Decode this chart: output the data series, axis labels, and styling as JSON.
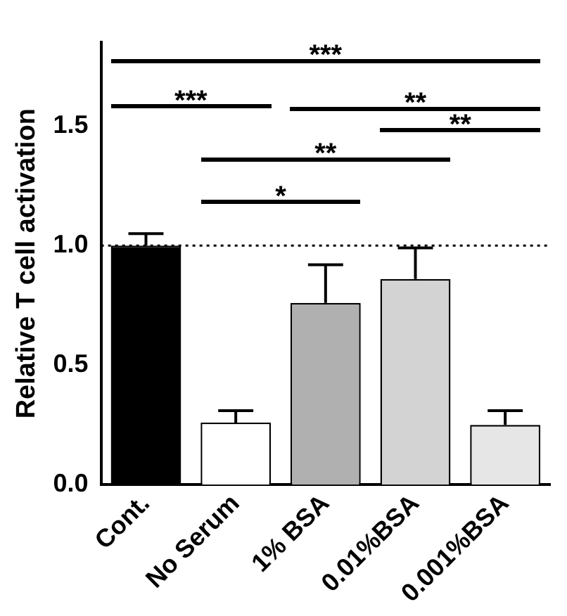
{
  "chart_data": {
    "type": "bar",
    "ylabel": "Relative T cell activation",
    "categories": [
      "Cont.",
      "No Serum",
      "1% BSA",
      "0.01%BSA",
      "0.001%BSA"
    ],
    "values": [
      1.0,
      0.26,
      0.76,
      0.86,
      0.25
    ],
    "errors": [
      [
        1.0,
        1.05
      ],
      [
        0.26,
        0.31
      ],
      [
        0.76,
        0.92
      ],
      [
        0.86,
        0.99
      ],
      [
        0.25,
        0.31
      ]
    ],
    "colors": [
      "#000000",
      "#ffffff",
      "#b0b0b0",
      "#d3d3d3",
      "#e6e6e6"
    ],
    "ylim": [
      0,
      1.85
    ],
    "yticks": [
      {
        "value": 0,
        "label": "0.0"
      },
      {
        "value": 0.5,
        "label": "0.5"
      },
      {
        "value": 1,
        "label": "1.0"
      },
      {
        "value": 1.5,
        "label": "1.5"
      }
    ],
    "ref_lines": [
      {
        "axis": "y",
        "value": 1,
        "line_style": "dotted",
        "color": "#000000"
      }
    ],
    "annotations": [
      "***",
      "***",
      "**",
      "**",
      "*",
      "**"
    ],
    "grid": false,
    "legend": false
  }
}
